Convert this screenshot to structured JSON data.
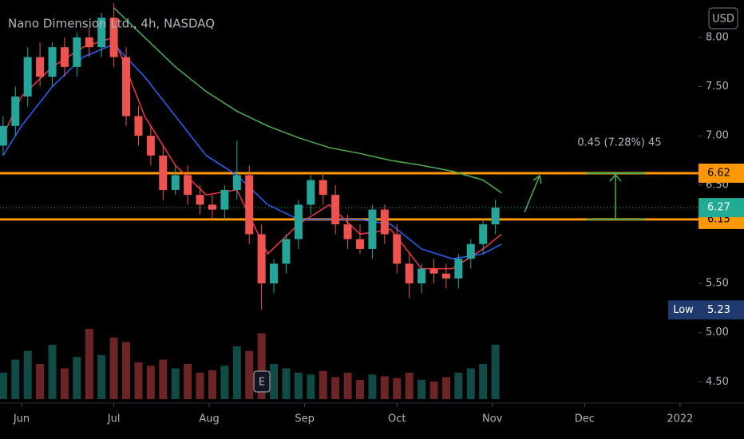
{
  "chart_data": {
    "type": "candlestick",
    "title": "Nano Dimension Ltd., 4h, NASDAQ",
    "currency": "USD",
    "event_badge": "E",
    "up_color": "#26a69a",
    "down_color": "#ef5350",
    "xlim": [
      -7,
      220
    ],
    "xticks": [
      {
        "value": 0,
        "label": "Jun"
      },
      {
        "value": 30,
        "label": "Jul"
      },
      {
        "value": 61,
        "label": "Aug"
      },
      {
        "value": 92,
        "label": "Sep"
      },
      {
        "value": 122,
        "label": "Oct"
      },
      {
        "value": 153,
        "label": "Nov"
      },
      {
        "value": 183,
        "label": "Dec"
      },
      {
        "value": 214,
        "label": "2022"
      }
    ],
    "ylim": [
      4.3,
      8.38
    ],
    "yticks": [
      {
        "value": 8,
        "label": "8.00"
      },
      {
        "value": 7.5,
        "label": "7.50"
      },
      {
        "value": 7,
        "label": "7.00"
      },
      {
        "value": 6.5,
        "label": "6.50"
      },
      {
        "value": 5.5,
        "label": "5.50"
      },
      {
        "value": 5,
        "label": "5.00"
      },
      {
        "value": 4.5,
        "label": "4.50"
      }
    ],
    "x": [
      -6,
      -2,
      2,
      6,
      10,
      14,
      18,
      22,
      26,
      30,
      34,
      38,
      42,
      46,
      50,
      54,
      58,
      62,
      66,
      70,
      74,
      78,
      82,
      86,
      90,
      94,
      98,
      102,
      106,
      110,
      114,
      118,
      122,
      126,
      130,
      134,
      138,
      142,
      146,
      150,
      154
    ],
    "open": [
      6.9,
      7.1,
      7.4,
      7.8,
      7.6,
      7.9,
      7.7,
      8.0,
      7.9,
      8.2,
      7.8,
      7.2,
      7.0,
      6.8,
      6.45,
      6.6,
      6.4,
      6.3,
      6.25,
      6.45,
      6.6,
      6.0,
      5.5,
      5.7,
      5.95,
      6.3,
      6.55,
      6.4,
      6.1,
      5.95,
      5.85,
      6.25,
      6.0,
      5.7,
      5.5,
      5.65,
      5.6,
      5.55,
      5.75,
      5.9,
      6.1
    ],
    "high": [
      7.2,
      7.5,
      7.9,
      7.95,
      7.95,
      8.0,
      8.05,
      8.1,
      8.25,
      8.35,
      7.9,
      7.3,
      7.1,
      6.9,
      6.7,
      6.7,
      6.5,
      6.4,
      6.5,
      6.95,
      6.7,
      6.1,
      5.75,
      6.0,
      6.35,
      6.6,
      6.62,
      6.5,
      6.2,
      6.1,
      6.3,
      6.3,
      6.1,
      5.8,
      5.7,
      5.75,
      5.7,
      5.8,
      5.95,
      6.15,
      6.35
    ],
    "low": [
      6.8,
      7.0,
      7.3,
      7.5,
      7.5,
      7.6,
      7.6,
      7.8,
      7.8,
      7.7,
      7.1,
      6.9,
      6.7,
      6.35,
      6.4,
      6.3,
      6.2,
      6.15,
      6.15,
      6.35,
      5.9,
      5.23,
      5.4,
      5.6,
      5.85,
      6.2,
      6.3,
      6.0,
      5.85,
      5.8,
      5.75,
      5.9,
      5.6,
      5.35,
      5.4,
      5.5,
      5.45,
      5.45,
      5.65,
      5.8,
      6.0
    ],
    "close": [
      7.1,
      7.4,
      7.8,
      7.6,
      7.9,
      7.7,
      8.0,
      7.9,
      8.2,
      7.8,
      7.2,
      7.0,
      6.8,
      6.45,
      6.6,
      6.4,
      6.3,
      6.25,
      6.45,
      6.6,
      6.0,
      5.5,
      5.7,
      5.95,
      6.3,
      6.55,
      6.4,
      6.1,
      5.95,
      5.85,
      6.25,
      6.0,
      5.7,
      5.5,
      5.65,
      5.6,
      5.55,
      5.75,
      5.9,
      6.1,
      6.27
    ],
    "volume": [
      30,
      45,
      55,
      40,
      62,
      35,
      48,
      80,
      50,
      70,
      65,
      42,
      38,
      45,
      35,
      40,
      30,
      33,
      38,
      60,
      55,
      75,
      40,
      35,
      30,
      28,
      32,
      25,
      30,
      22,
      28,
      26,
      24,
      30,
      22,
      20,
      25,
      30,
      35,
      40,
      62
    ],
    "volume_lim": [
      0,
      100
    ],
    "moving_averages": [
      {
        "color": "#f23645",
        "x": [
          -6,
          0,
          10,
          20,
          30,
          40,
          50,
          60,
          70,
          80,
          90,
          100,
          110,
          120,
          130,
          140,
          150,
          156
        ],
        "values": [
          7.0,
          7.4,
          7.7,
          7.9,
          8.0,
          7.2,
          6.7,
          6.4,
          6.45,
          5.8,
          6.1,
          6.3,
          6.0,
          6.05,
          5.65,
          5.65,
          5.85,
          6.0
        ]
      },
      {
        "color": "#2962ff",
        "x": [
          -6,
          0,
          10,
          20,
          30,
          40,
          50,
          60,
          70,
          80,
          90,
          100,
          110,
          120,
          130,
          140,
          150,
          156
        ],
        "values": [
          6.8,
          7.1,
          7.5,
          7.8,
          7.93,
          7.6,
          7.2,
          6.8,
          6.6,
          6.3,
          6.15,
          6.15,
          6.15,
          6.1,
          5.85,
          5.75,
          5.8,
          5.9
        ]
      },
      {
        "color": "#4caf50",
        "x": [
          30,
          40,
          50,
          60,
          70,
          80,
          90,
          100,
          110,
          120,
          130,
          140,
          150,
          156
        ],
        "values": [
          8.3,
          8.0,
          7.7,
          7.45,
          7.25,
          7.1,
          6.98,
          6.88,
          6.82,
          6.75,
          6.7,
          6.64,
          6.55,
          6.42
        ]
      }
    ],
    "levels": [
      {
        "value": 6.62,
        "color": "#ff9800"
      },
      {
        "value": 6.15,
        "color": "#ff9800"
      }
    ],
    "last_price": {
      "value": 6.27,
      "color": "#22ab94"
    },
    "low_marker": {
      "label": "Low",
      "value": 5.23,
      "color": "#1e3a6e"
    },
    "measure_label": "0.45 (7.28%) 45"
  }
}
